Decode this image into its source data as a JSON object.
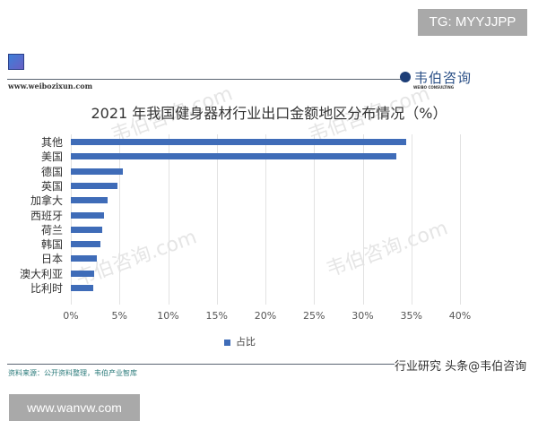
{
  "overlay": {
    "top_right_label": "TG: MYYJJPP",
    "bottom_left_label": "www.wanvw.com"
  },
  "header": {
    "website": "www.weibozixun.com",
    "brand_cn": "韦伯咨询",
    "brand_en": "WEIBO CONSULTING"
  },
  "footer": {
    "source": "资料来源：公开资料整理，韦伯产业智库",
    "right_text": "行业研究 头条@韦伯咨询"
  },
  "watermark": "韦伯咨询.com",
  "chart_data": {
    "type": "bar",
    "orientation": "horizontal",
    "title": "2021 年我国健身器材行业出口金额地区分布情况（%）",
    "categories": [
      "其他",
      "美国",
      "德国",
      "英国",
      "加拿大",
      "西班牙",
      "荷兰",
      "韩国",
      "日本",
      "澳大利亚",
      "比利时"
    ],
    "series": [
      {
        "name": "占比",
        "color": "#3f6cb8",
        "values": [
          34.5,
          33.5,
          5.3,
          4.8,
          3.8,
          3.4,
          3.2,
          3.0,
          2.7,
          2.4,
          2.3
        ]
      }
    ],
    "xlabel": "",
    "ylabel": "",
    "xlim": [
      0,
      40
    ],
    "x_ticks": [
      "0%",
      "5%",
      "10%",
      "15%",
      "20%",
      "25%",
      "30%",
      "35%",
      "40%"
    ],
    "grid": true,
    "legend_position": "bottom"
  }
}
